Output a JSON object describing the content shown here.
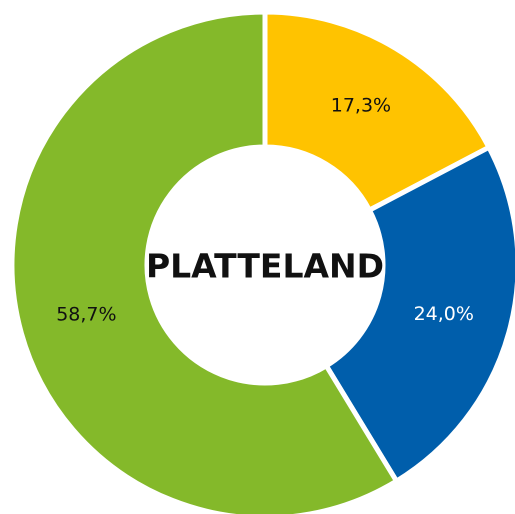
{
  "chart_data": {
    "type": "donut",
    "title": "PLATTELAND",
    "values": [
      17.3,
      24.0,
      58.7
    ],
    "value_labels": [
      "17,3%",
      "24,0%",
      "58,7%"
    ],
    "colors": [
      "#ffc300",
      "#005eab",
      "#84b92a"
    ],
    "label_colors": [
      "#111111",
      "#ffffff",
      "#111111"
    ]
  }
}
